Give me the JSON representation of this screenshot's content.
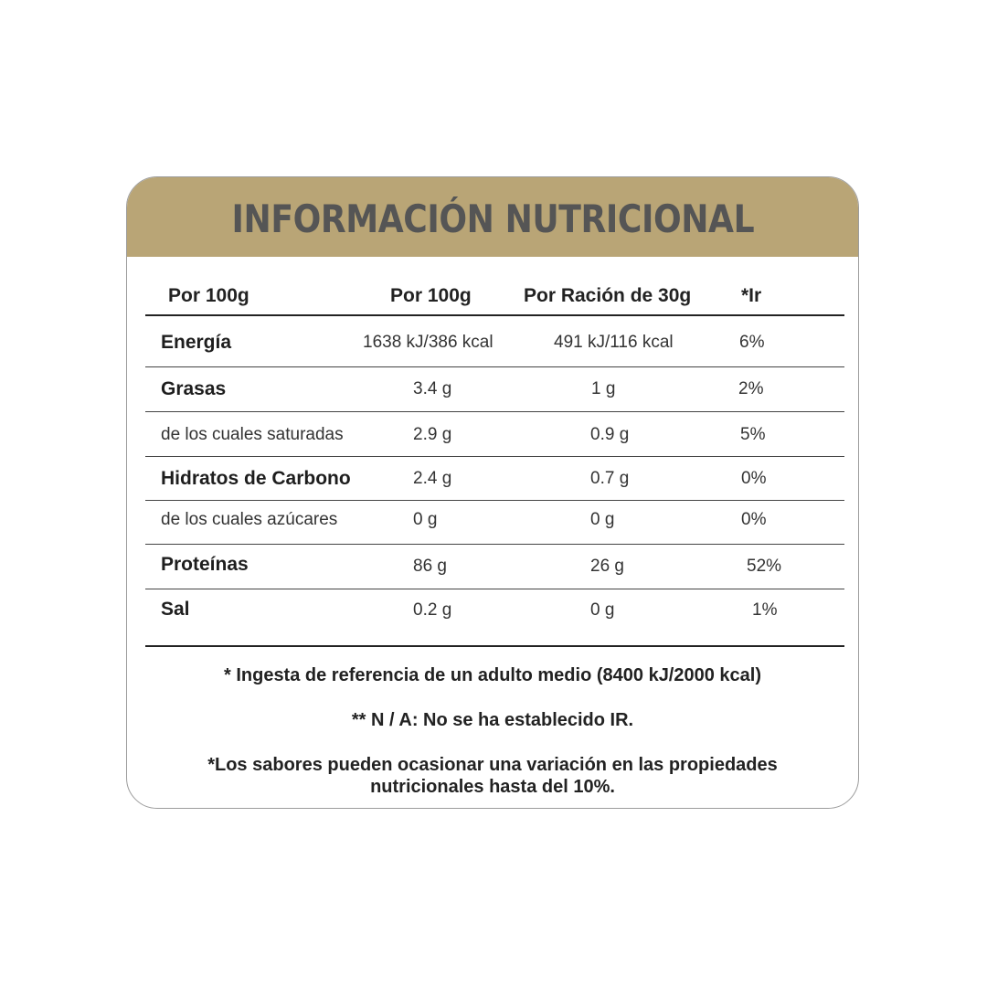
{
  "title": "INFORMACIÓN NUTRICIONAL",
  "headers": [
    "Por 100g",
    "Por 100g",
    "Por Ración de 30g",
    "*Ir"
  ],
  "rows": [
    {
      "label": "Energía",
      "per100": "1638 kJ/386 kcal",
      "perServing": "491 kJ/116 kcal",
      "ir": "6%"
    },
    {
      "label": "Grasas",
      "per100": "3.4 g",
      "perServing": "1 g",
      "ir": "2%"
    },
    {
      "label": "de los cuales saturadas",
      "per100": "2.9 g",
      "perServing": "0.9 g",
      "ir": "5%"
    },
    {
      "label": "Hidratos de Carbono",
      "per100": "2.4 g",
      "perServing": "0.7 g",
      "ir": "0%"
    },
    {
      "label": "de los cuales azúcares",
      "per100": "0 g",
      "perServing": "0 g",
      "ir": "0%"
    },
    {
      "label": "Proteínas",
      "per100": "86 g",
      "perServing": "26 g",
      "ir": "52%"
    },
    {
      "label": "Sal",
      "per100": "0.2 g",
      "perServing": "0 g",
      "ir": "1%"
    }
  ],
  "notes": {
    "reference": "* Ingesta de referencia de un adulto medio (8400 kJ/2000 kcal)",
    "na": "** N / A: No se ha establecido IR.",
    "flavors_1": "*Los sabores pueden ocasionar una variación en las propiedades",
    "flavors_2": "nutricionales hasta del 10%."
  },
  "colors": {
    "header_bg": "#b9a576",
    "title_text": "#555555"
  }
}
